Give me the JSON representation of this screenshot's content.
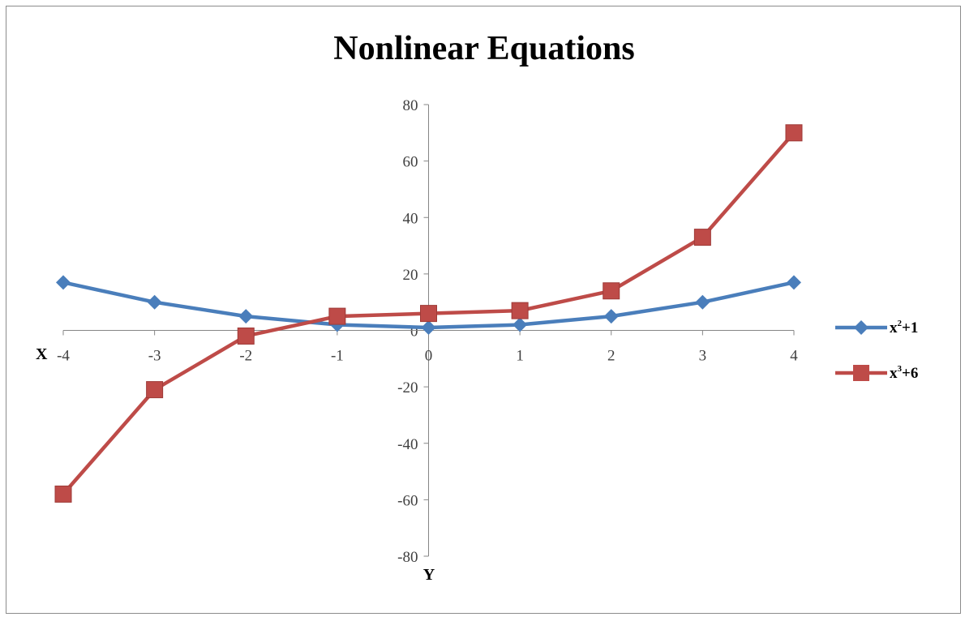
{
  "chart_data": {
    "type": "line",
    "title": "Nonlinear Equations",
    "xlabel": "X",
    "ylabel": "Y",
    "x": [
      -4,
      -3,
      -2,
      -1,
      0,
      1,
      2,
      3,
      4
    ],
    "xlim": [
      -4,
      4
    ],
    "ylim": [
      -80,
      80
    ],
    "y_ticks": [
      80,
      60,
      40,
      20,
      0,
      -20,
      -40,
      -60,
      -80
    ],
    "x_tick_labels": [
      "-4",
      "-3",
      "-2",
      "-1",
      "0",
      "1",
      "2",
      "3",
      "4"
    ],
    "grid": false,
    "legend_position": "right",
    "series": [
      {
        "name": "x²+1",
        "label_base": "x",
        "label_sup": "2",
        "label_rest": "+1",
        "color": "#4a7ebb",
        "marker": "diamond",
        "values": [
          17,
          10,
          5,
          2,
          1,
          2,
          5,
          10,
          17
        ]
      },
      {
        "name": "x³+6",
        "label_base": "x",
        "label_sup": "3",
        "label_rest": "+6",
        "color": "#be4b48",
        "marker": "square",
        "values": [
          -58,
          -21,
          -2,
          5,
          6,
          7,
          14,
          33,
          70
        ]
      }
    ]
  }
}
